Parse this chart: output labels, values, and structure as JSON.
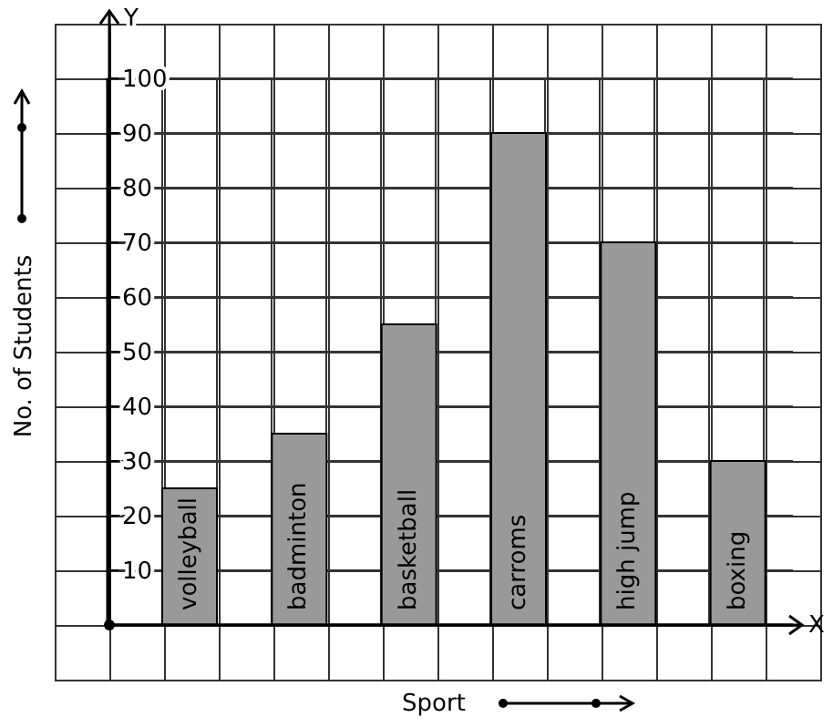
{
  "chart_data": {
    "type": "bar",
    "xlabel": "Sport",
    "ylabel": "No. of Students",
    "categories": [
      "volleyball",
      "badminton",
      "basketball",
      "carroms",
      "high jump",
      "boxing"
    ],
    "values": [
      25,
      35,
      55,
      90,
      70,
      30
    ],
    "color": "#999999",
    "ylim": [
      0,
      100
    ],
    "yticks": [
      10,
      20,
      30,
      40,
      50,
      60,
      70,
      80,
      90,
      100
    ],
    "grid": true,
    "annotations": [
      "Y",
      "X"
    ]
  }
}
